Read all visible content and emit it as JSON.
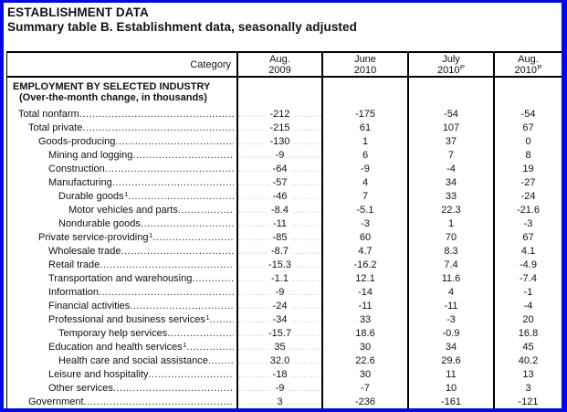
{
  "page": {
    "title": "ESTABLISHMENT DATA",
    "subtitle": "Summary table B. Establishment data, seasonally adjusted"
  },
  "colors": {
    "frame_border": "#0008ee",
    "table_border": "#000000",
    "text": "#111111"
  },
  "table": {
    "category_header": "Category",
    "columns": [
      {
        "line1": "Aug.",
        "line2": "2009",
        "sup": ""
      },
      {
        "line1": "June",
        "line2": "2010",
        "sup": ""
      },
      {
        "line1": "July",
        "line2": "2010",
        "sup": "P"
      },
      {
        "line1": "Aug.",
        "line2": "2010",
        "sup": "P"
      }
    ],
    "section": {
      "line1": "EMPLOYMENT BY SELECTED INDUSTRY",
      "line2": "(Over-the-month change, in thousands)"
    },
    "rows": [
      {
        "label": "Total nonfarm",
        "indent": 0,
        "sup": "",
        "values": [
          "-212",
          "-175",
          "-54",
          "-54"
        ]
      },
      {
        "label": "Total private",
        "indent": 1,
        "sup": "",
        "values": [
          "-215",
          "61",
          "107",
          "67"
        ]
      },
      {
        "label": "Goods-producing",
        "indent": 2,
        "sup": "",
        "values": [
          "-130",
          "1",
          "37",
          "0"
        ]
      },
      {
        "label": "Mining and logging",
        "indent": 3,
        "sup": "",
        "values": [
          "-9",
          "6",
          "7",
          "8"
        ]
      },
      {
        "label": "Construction",
        "indent": 3,
        "sup": "",
        "values": [
          "-64",
          "-9",
          "-4",
          "19"
        ]
      },
      {
        "label": "Manufacturing",
        "indent": 3,
        "sup": "",
        "values": [
          "-57",
          "4",
          "34",
          "-27"
        ]
      },
      {
        "label": "Durable goods",
        "indent": 4,
        "sup": "1",
        "values": [
          "-46",
          "7",
          "33",
          "-24"
        ]
      },
      {
        "label": "Motor vehicles and parts",
        "indent": 5,
        "sup": "",
        "values": [
          "-8.4",
          "-5.1",
          "22.3",
          "-21.6"
        ]
      },
      {
        "label": "Nondurable goods",
        "indent": 4,
        "sup": "",
        "values": [
          "-11",
          "-3",
          "1",
          "-3"
        ]
      },
      {
        "label": "Private service-providing",
        "indent": 2,
        "sup": "1",
        "values": [
          "-85",
          "60",
          "70",
          "67"
        ]
      },
      {
        "label": "Wholesale trade",
        "indent": 3,
        "sup": "",
        "values": [
          "-8.7",
          "4.7",
          "8.3",
          "4.1"
        ]
      },
      {
        "label": "Retail trade",
        "indent": 3,
        "sup": "",
        "values": [
          "-15.3",
          "-16.2",
          "7.4",
          "-4.9"
        ]
      },
      {
        "label": "Transportation and warehousing",
        "indent": 3,
        "sup": "",
        "values": [
          "-1.1",
          "12.1",
          "11.6",
          "-7.4"
        ]
      },
      {
        "label": "Information",
        "indent": 3,
        "sup": "",
        "values": [
          "-9",
          "-14",
          "4",
          "-1"
        ]
      },
      {
        "label": "Financial activities",
        "indent": 3,
        "sup": "",
        "values": [
          "-24",
          "-11",
          "-11",
          "-4"
        ]
      },
      {
        "label": "Professional and business services",
        "indent": 3,
        "sup": "1",
        "values": [
          "-34",
          "33",
          "-3",
          "20"
        ]
      },
      {
        "label": "Temporary help services",
        "indent": 4,
        "sup": "",
        "values": [
          "-15.7",
          "18.6",
          "-0.9",
          "16.8"
        ]
      },
      {
        "label": "Education and health services",
        "indent": 3,
        "sup": "1",
        "values": [
          "35",
          "30",
          "34",
          "45"
        ]
      },
      {
        "label": "Health care and social assistance",
        "indent": 4,
        "sup": "",
        "values": [
          "32.0",
          "22.6",
          "29.6",
          "40.2"
        ]
      },
      {
        "label": "Leisure and hospitality",
        "indent": 3,
        "sup": "",
        "values": [
          "-18",
          "30",
          "11",
          "13"
        ]
      },
      {
        "label": "Other services",
        "indent": 3,
        "sup": "",
        "values": [
          "-9",
          "-7",
          "10",
          "3"
        ]
      },
      {
        "label": "Government",
        "indent": 1,
        "sup": "",
        "values": [
          "3",
          "-236",
          "-161",
          "-121"
        ]
      }
    ]
  }
}
